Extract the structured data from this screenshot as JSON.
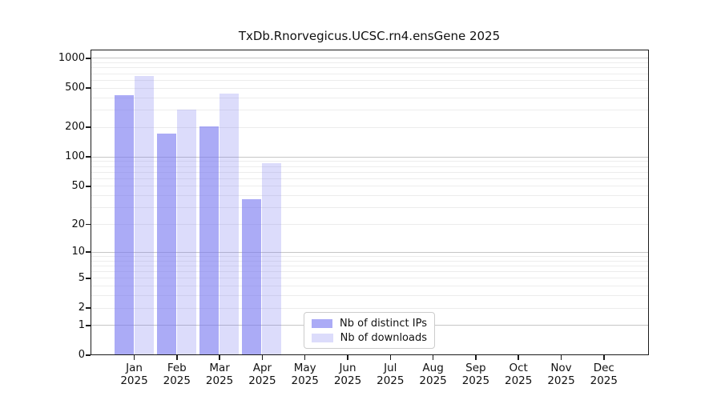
{
  "title": "TxDb.Rnorvegicus.UCSC.rn4.ensGene 2025",
  "chart_data": {
    "type": "bar",
    "title": "TxDb.Rnorvegicus.UCSC.rn4.ensGene 2025",
    "xlabel": "",
    "ylabel": "",
    "yscale": "log1p",
    "ylim": [
      0,
      1230
    ],
    "grid": "horizontal major+minor",
    "legend_position": "inside lower-center-left",
    "categories": [
      "Jan 2025",
      "Feb 2025",
      "Mar 2025",
      "Apr 2025",
      "May 2025",
      "Jun 2025",
      "Jul 2025",
      "Aug 2025",
      "Sep 2025",
      "Oct 2025",
      "Nov 2025",
      "Dec 2025"
    ],
    "x_tick_months": [
      "Jan",
      "Feb",
      "Mar",
      "Apr",
      "May",
      "Jun",
      "Jul",
      "Aug",
      "Sep",
      "Oct",
      "Nov",
      "Dec"
    ],
    "x_tick_year": "2025",
    "y_tick_values": [
      0,
      1,
      2,
      5,
      10,
      20,
      50,
      100,
      200,
      500,
      1000
    ],
    "y_tick_labels": [
      "0",
      "1",
      "2",
      "5",
      "10",
      "20",
      "50",
      "100",
      "200",
      "500",
      "1000"
    ],
    "series": [
      {
        "name": "Nb of distinct IPs",
        "color": "#7878f0",
        "alpha": 0.62,
        "values": [
          420,
          170,
          200,
          36,
          null,
          null,
          null,
          null,
          null,
          null,
          null,
          null
        ]
      },
      {
        "name": "Nb of downloads",
        "color": "#7878f0",
        "alpha": 0.26,
        "values": [
          650,
          300,
          430,
          85,
          null,
          null,
          null,
          null,
          null,
          null,
          null,
          null
        ]
      }
    ]
  },
  "colors": {
    "bar_base": "#7878f0",
    "grid_minor": "#ececec",
    "grid_major": "#c6c6c6",
    "spine": "#1a1a1a",
    "text": "#111111",
    "legend_border": "#cccccc"
  }
}
